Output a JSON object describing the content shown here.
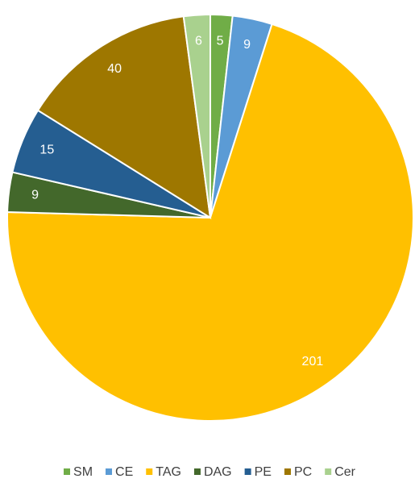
{
  "chart_data": {
    "type": "pie",
    "categories": [
      "SM",
      "CE",
      "TAG",
      "DAG",
      "PE",
      "PC",
      "Cer"
    ],
    "values": [
      5,
      9,
      201,
      9,
      15,
      40,
      6
    ],
    "colors": [
      "#70ad47",
      "#5b9bd5",
      "#ffc000",
      "#43682b",
      "#255e91",
      "#9e7700",
      "#a9d18e"
    ],
    "legend": "bottom"
  }
}
